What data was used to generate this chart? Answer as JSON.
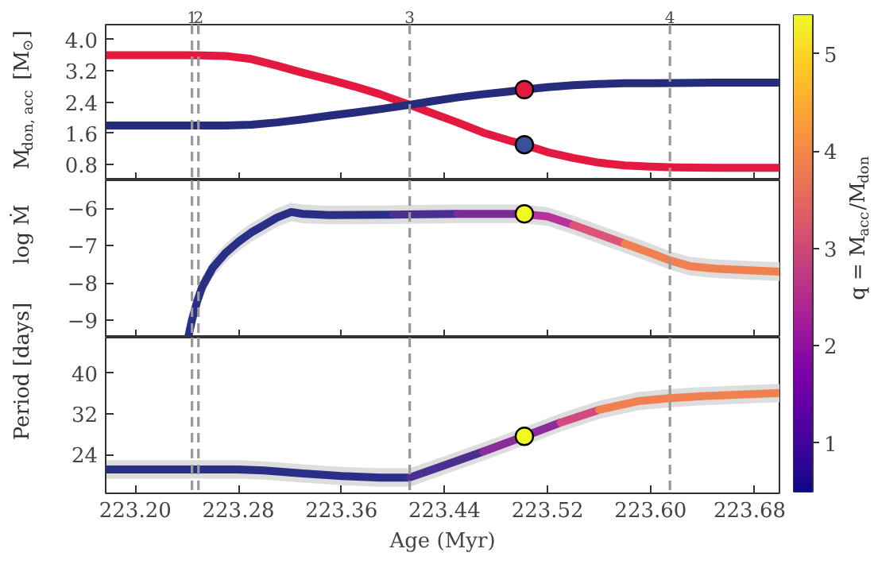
{
  "chart_data": [
    {
      "type": "line",
      "ylabel": "M$_{don, acc}$ [M$_{⊙}$]",
      "xlim": [
        223.177,
        223.7
      ],
      "ylim": [
        0.4,
        4.38
      ],
      "xticks": [
        223.2,
        223.28,
        223.36,
        223.44,
        223.52,
        223.6,
        223.68
      ],
      "annotations": [
        {
          "text": "1",
          "x": 223.244
        },
        {
          "text": "2",
          "x": 223.249
        },
        {
          "text": "3",
          "x": 223.413
        },
        {
          "text": "4",
          "x": 223.615
        }
      ],
      "yticks": [
        {
          "value": 0.8,
          "label": "0.8"
        },
        {
          "value": 1.6,
          "label": "1.6"
        },
        {
          "value": 2.4,
          "label": "2.4"
        },
        {
          "value": 3.2,
          "label": "3.2"
        },
        {
          "value": 4.0,
          "label": "4.0"
        }
      ],
      "tick_labels": "y",
      "series": [
        {
          "color": "#e3193f",
          "x": [
            223.177,
            223.2,
            223.24,
            223.27,
            223.29,
            223.31,
            223.33,
            223.35,
            223.37,
            223.39,
            223.413,
            223.43,
            223.45,
            223.47,
            223.49,
            223.502,
            223.52,
            223.54,
            223.56,
            223.58,
            223.6,
            223.62,
            223.65,
            223.7
          ],
          "values": [
            3.6,
            3.6,
            3.6,
            3.58,
            3.5,
            3.33,
            3.15,
            2.98,
            2.8,
            2.6,
            2.33,
            2.12,
            1.88,
            1.62,
            1.42,
            1.31,
            1.12,
            0.97,
            0.85,
            0.78,
            0.75,
            0.73,
            0.72,
            0.72
          ]
        },
        {
          "color": "#262c7c",
          "x": [
            223.177,
            223.2,
            223.24,
            223.27,
            223.29,
            223.31,
            223.33,
            223.35,
            223.37,
            223.39,
            223.413,
            223.43,
            223.45,
            223.47,
            223.49,
            223.502,
            223.52,
            223.54,
            223.56,
            223.58,
            223.6,
            223.62,
            223.65,
            223.7
          ],
          "values": [
            1.8,
            1.8,
            1.8,
            1.8,
            1.82,
            1.88,
            1.96,
            2.05,
            2.13,
            2.22,
            2.33,
            2.42,
            2.52,
            2.6,
            2.67,
            2.72,
            2.78,
            2.83,
            2.86,
            2.88,
            2.88,
            2.89,
            2.9,
            2.9
          ]
        },
        {
          "type": "scatter",
          "color": "#e3193f",
          "x": [
            223.502
          ],
          "values": [
            2.72
          ]
        },
        {
          "type": "scatter",
          "color": "#3b4f9a",
          "x": [
            223.502
          ],
          "values": [
            1.31
          ]
        }
      ],
      "ref_lines": [
        {
          "axis": "x",
          "value": 223.244,
          "color": "#999999",
          "line_style": "dashed"
        },
        {
          "axis": "x",
          "value": 223.249,
          "color": "#999999",
          "line_style": "dashed"
        },
        {
          "axis": "x",
          "value": 223.413,
          "color": "#999999",
          "line_style": "dashed"
        },
        {
          "axis": "x",
          "value": 223.615,
          "color": "#999999",
          "line_style": "dashed"
        }
      ]
    },
    {
      "type": "line",
      "ylabel": "log Ṁ",
      "xlim": [
        223.177,
        223.7
      ],
      "ylim": [
        -9.47,
        -5.25
      ],
      "xticks": [
        223.2,
        223.28,
        223.36,
        223.44,
        223.52,
        223.6,
        223.68
      ],
      "yticks": [
        {
          "value": -9,
          "label": "−9"
        },
        {
          "value": -8,
          "label": "−8"
        },
        {
          "value": -7,
          "label": "−7"
        },
        {
          "value": -6,
          "label": "−6"
        }
      ],
      "tick_labels": "y",
      "clim": [
        0.5,
        5.4
      ],
      "cticks": [
        1,
        2,
        3,
        4,
        5
      ],
      "clabel": "q = M$_{acc}$/M$_{don}$",
      "series": [
        {
          "color": "#2a2f86",
          "x": [
            223.241,
            223.244,
            223.248,
            223.252,
            223.26,
            223.27,
            223.28,
            223.29,
            223.3,
            223.31,
            223.321,
            223.33,
            223.35,
            223.4
          ],
          "values": [
            -9.47,
            -9.0,
            -8.5,
            -8.1,
            -7.6,
            -7.2,
            -6.9,
            -6.65,
            -6.45,
            -6.25,
            -6.1,
            -6.15,
            -6.18,
            -6.17
          ],
          "lower": [
            -9.47,
            -9.25,
            -8.75,
            -8.35,
            -7.85,
            -7.45,
            -7.15,
            -6.9,
            -6.7,
            -6.5,
            -6.35,
            -6.4,
            -6.43,
            -6.42
          ],
          "upper": [
            -9.2,
            -8.75,
            -8.25,
            -7.85,
            -7.35,
            -6.95,
            -6.65,
            -6.4,
            -6.2,
            -6.0,
            -5.85,
            -5.9,
            -5.93,
            -5.92
          ]
        },
        {
          "color": "#47308f",
          "x": [
            223.4,
            223.45
          ],
          "values": [
            -6.17,
            -6.15
          ],
          "lower": [
            -6.42,
            -6.4
          ],
          "upper": [
            -5.92,
            -5.9
          ]
        },
        {
          "color": "#7a2c98",
          "x": [
            223.45,
            223.5
          ],
          "values": [
            -6.15,
            -6.15
          ],
          "lower": [
            -6.4,
            -6.4
          ],
          "upper": [
            -5.9,
            -5.9
          ]
        },
        {
          "color": "#b5339a",
          "x": [
            223.5,
            223.52,
            223.54
          ],
          "values": [
            -6.15,
            -6.22,
            -6.45
          ],
          "lower": [
            -6.4,
            -6.47,
            -6.7
          ],
          "upper": [
            -5.9,
            -5.97,
            -6.2
          ]
        },
        {
          "color": "#dc5577",
          "x": [
            223.54,
            223.56,
            223.58
          ],
          "values": [
            -6.45,
            -6.7,
            -6.95
          ],
          "lower": [
            -6.7,
            -6.95,
            -7.2
          ],
          "upper": [
            -6.2,
            -6.45,
            -6.7
          ]
        },
        {
          "color": "#f08050",
          "x": [
            223.58,
            223.6,
            223.615,
            223.63,
            223.65,
            223.7
          ],
          "values": [
            -6.95,
            -7.2,
            -7.4,
            -7.55,
            -7.62,
            -7.7
          ],
          "lower": [
            -7.2,
            -7.45,
            -7.65,
            -7.8,
            -7.87,
            -7.95
          ],
          "upper": [
            -6.7,
            -6.95,
            -7.15,
            -7.3,
            -7.37,
            -7.45
          ]
        },
        {
          "type": "scatter",
          "color": "#f0f921",
          "x": [
            223.502
          ],
          "values": [
            -6.15
          ]
        }
      ],
      "ref_lines": [
        {
          "axis": "x",
          "value": 223.244,
          "color": "#999999",
          "line_style": "dashed"
        },
        {
          "axis": "x",
          "value": 223.249,
          "color": "#999999",
          "line_style": "dashed"
        },
        {
          "axis": "x",
          "value": 223.413,
          "color": "#999999",
          "line_style": "dashed"
        },
        {
          "axis": "x",
          "value": 223.615,
          "color": "#999999",
          "line_style": "dashed"
        }
      ]
    },
    {
      "type": "line",
      "xlabel": "Age (Myr)",
      "ylabel": "Period [days]",
      "xlim": [
        223.177,
        223.7
      ],
      "ylim": [
        16.4,
        47.0
      ],
      "xticks": [
        {
          "value": 223.2,
          "label": "223.20"
        },
        {
          "value": 223.28,
          "label": "223.28"
        },
        {
          "value": 223.36,
          "label": "223.36"
        },
        {
          "value": 223.44,
          "label": "223.44"
        },
        {
          "value": 223.52,
          "label": "223.52"
        },
        {
          "value": 223.6,
          "label": "223.60"
        },
        {
          "value": 223.68,
          "label": "223.68"
        }
      ],
      "yticks": [
        24,
        32,
        40
      ],
      "series": [
        {
          "color": "#2a2f86",
          "x": [
            223.177,
            223.2,
            223.25,
            223.28,
            223.3,
            223.33,
            223.36,
            223.39,
            223.413
          ],
          "values": [
            21.1,
            21.1,
            21.1,
            21.1,
            20.9,
            20.3,
            19.8,
            19.5,
            19.5
          ],
          "lower": [
            19.3,
            19.3,
            19.3,
            19.3,
            19.1,
            18.5,
            18.0,
            17.7,
            17.7
          ],
          "upper": [
            22.9,
            22.9,
            22.9,
            22.9,
            22.7,
            22.1,
            21.6,
            21.3,
            21.3
          ]
        },
        {
          "color": "#4a2e90",
          "x": [
            223.413,
            223.44,
            223.47
          ],
          "values": [
            19.5,
            21.9,
            24.6
          ],
          "lower": [
            17.7,
            20.1,
            22.8
          ],
          "upper": [
            21.3,
            23.7,
            26.4
          ]
        },
        {
          "color": "#8a2d9a",
          "x": [
            223.47,
            223.502,
            223.53
          ],
          "values": [
            24.6,
            27.6,
            30.3
          ],
          "lower": [
            22.8,
            25.8,
            28.5
          ],
          "upper": [
            26.4,
            29.4,
            32.1
          ]
        },
        {
          "color": "#d04a80",
          "x": [
            223.53,
            223.56
          ],
          "values": [
            30.3,
            32.8
          ],
          "lower": [
            28.5,
            31.0
          ],
          "upper": [
            32.1,
            34.6
          ]
        },
        {
          "color": "#f08050",
          "x": [
            223.56,
            223.59,
            223.615,
            223.64,
            223.67,
            223.7
          ],
          "values": [
            32.8,
            34.5,
            35.1,
            35.5,
            35.8,
            36.1
          ],
          "lower": [
            31.0,
            32.7,
            33.3,
            33.7,
            34.0,
            34.3
          ],
          "upper": [
            34.6,
            36.3,
            36.9,
            37.3,
            37.6,
            37.9
          ]
        },
        {
          "type": "scatter",
          "color": "#f0f921",
          "x": [
            223.502
          ],
          "values": [
            27.6
          ]
        }
      ],
      "ref_lines": [
        {
          "axis": "x",
          "value": 223.244,
          "color": "#999999",
          "line_style": "dashed"
        },
        {
          "axis": "x",
          "value": 223.249,
          "color": "#999999",
          "line_style": "dashed"
        },
        {
          "axis": "x",
          "value": 223.413,
          "color": "#999999",
          "line_style": "dashed"
        },
        {
          "axis": "x",
          "value": 223.615,
          "color": "#999999",
          "line_style": "dashed"
        }
      ]
    }
  ]
}
